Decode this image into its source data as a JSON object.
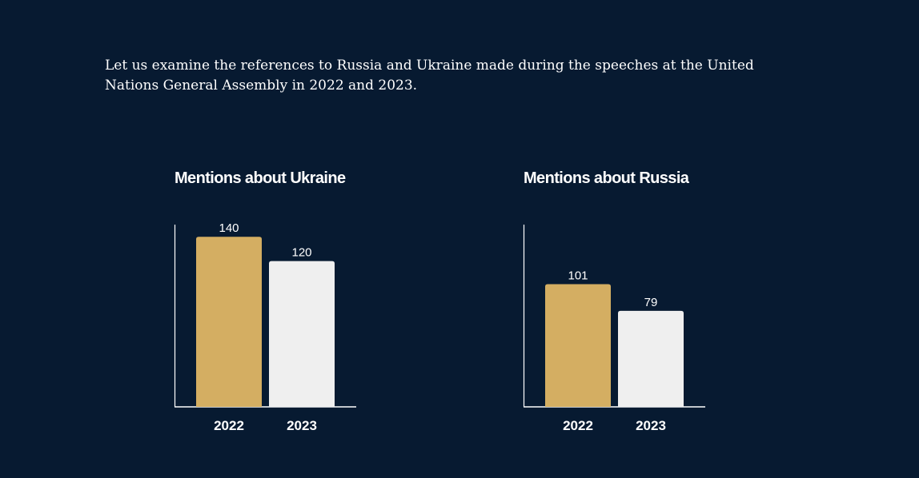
{
  "intro": "Let us examine the references to Russia and Ukraine made during the speeches at the United Nations General Assembly in 2022 and 2023.",
  "colors": {
    "background": "#071a31",
    "bar_2022": "#d4ae62",
    "bar_2023": "#efefef",
    "text": "#ffffff",
    "axis": "#ffffff"
  },
  "chart_data": [
    {
      "type": "bar",
      "title": "Mentions about Ukraine",
      "categories": [
        "2022",
        "2023"
      ],
      "values": [
        140,
        120
      ],
      "xlabel": "",
      "ylabel": "",
      "ylim": [
        0,
        150
      ],
      "grid": false
    },
    {
      "type": "bar",
      "title": "Mentions about Russia",
      "categories": [
        "2022",
        "2023"
      ],
      "values": [
        101,
        79
      ],
      "xlabel": "",
      "ylabel": "",
      "ylim": [
        0,
        150
      ],
      "grid": false
    }
  ]
}
